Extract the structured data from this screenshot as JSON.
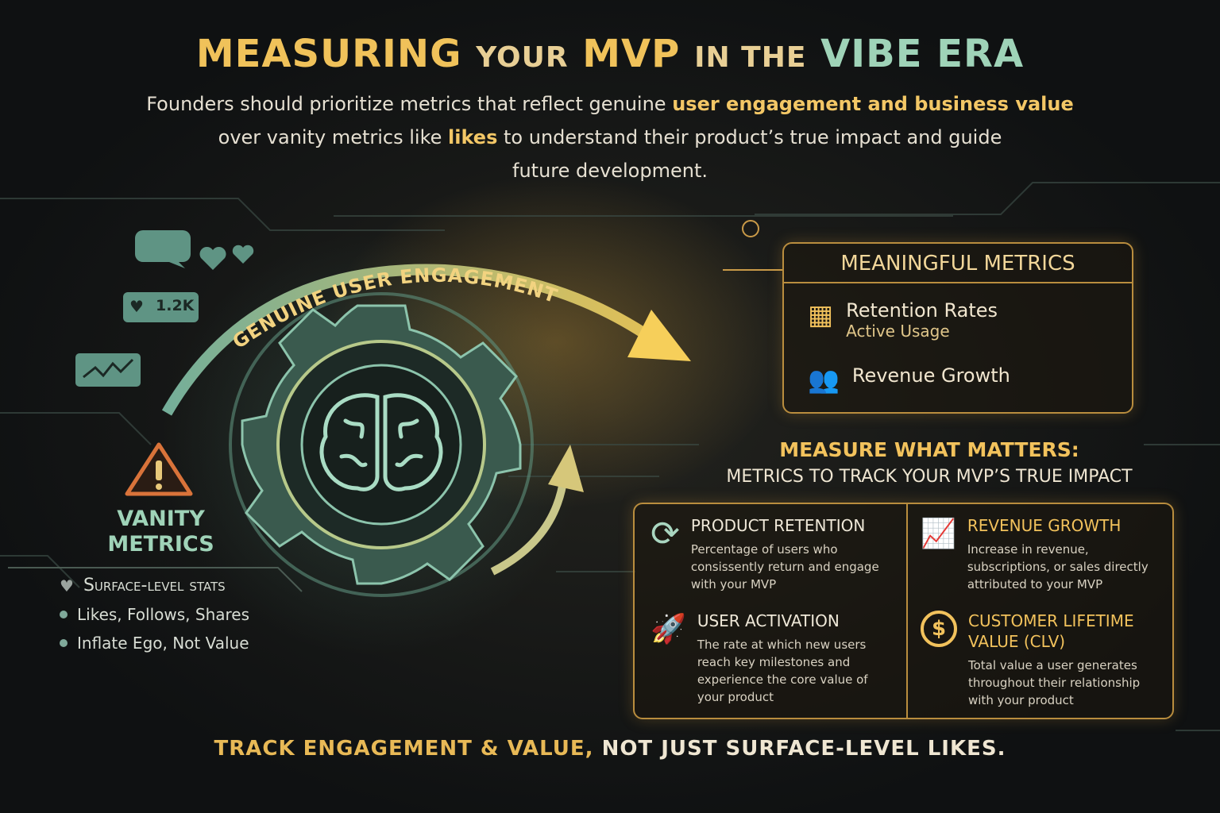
{
  "title": {
    "part1": "MEASURING",
    "part2": "YOUR",
    "part3": "MVP",
    "part4": "IN THE",
    "part5": "VIBE ERA"
  },
  "intro": {
    "line1a": "Founders should prioritize metrics that reflect genuine ",
    "line1b": "user engagement and business value",
    "line2a": "over vanity metrics like ",
    "line2b": "likes",
    "line2c": " to understand their product’s true impact and guide",
    "line3": "future development."
  },
  "arc_label": "GENUINE USER ENGAGEMENT",
  "social": {
    "like_count": "1.2K"
  },
  "vanity": {
    "title1": "VANITY",
    "title2": "METRICS",
    "heading": "Surface-level stats",
    "items": [
      "Likes, Follows, Shares",
      "Inflate Ego, Not Value"
    ]
  },
  "meaningful": {
    "title": "MEANINGFUL METRICS",
    "items": [
      {
        "label": "Retention Rates",
        "sub": "Active Usage",
        "icon": "calendar-check-icon"
      },
      {
        "label": "Revenue Growth",
        "icon": "users-group-icon"
      }
    ]
  },
  "measure": {
    "line1": "MEASURE WHAT MATTERS:",
    "line2": "METRICS TO TRACK YOUR MVP’S TRUE IMPACT"
  },
  "metrics": [
    {
      "title": "PRODUCT RETENTION",
      "desc": "Percentage of users who consissently return and engage with your MVP",
      "icon": "refresh-cycle-icon"
    },
    {
      "title": "REVENUE GROWTH",
      "desc": "Increase in revenue, subscriptions, or sales directly attributed to your MVP",
      "icon": "bar-chart-growth-icon"
    },
    {
      "title": "USER ACTIVATION",
      "desc": "The rate at which new users reach key milestones and experience the core value of your product",
      "icon": "rocket-icon"
    },
    {
      "title": "CUSTOMER LIFETIME VALUE (CLV)",
      "desc": "Total value a user generates throughout their relationship with your product",
      "icon": "dollar-coin-icon"
    }
  ],
  "footer": {
    "part1": "TRACK ENGAGEMENT & VALUE,",
    "part2": " NOT JUST SURFACE-LEVEL LIKES."
  },
  "colors": {
    "gold": "#f2c25c",
    "teal": "#9fd3b8",
    "warning": "#d9733a",
    "background": "#141617"
  }
}
